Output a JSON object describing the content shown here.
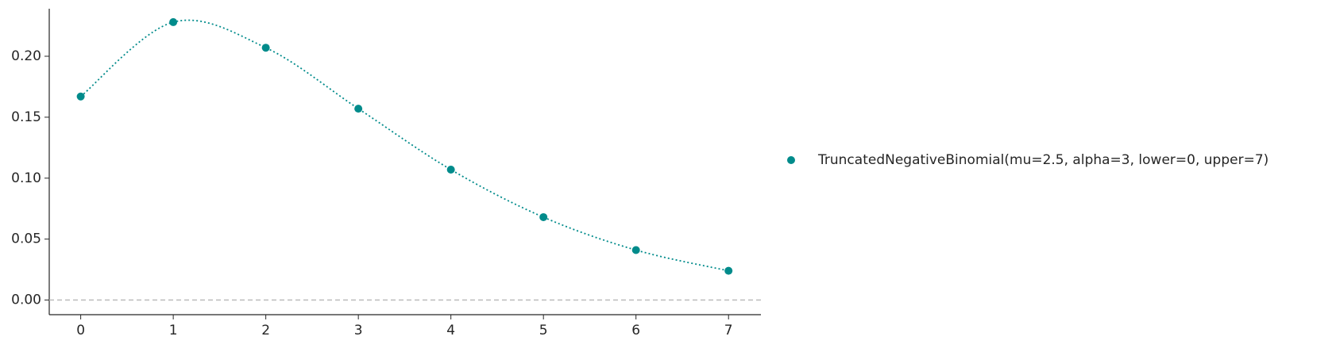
{
  "chart_data": {
    "type": "line",
    "x": [
      0,
      1,
      2,
      3,
      4,
      5,
      6,
      7
    ],
    "series": [
      {
        "name": "TruncatedNegativeBinomial(mu=2.5, alpha=3, lower=0, upper=7)",
        "color": "#008b8b",
        "values": [
          0.167,
          0.228,
          0.207,
          0.157,
          0.107,
          0.068,
          0.041,
          0.024
        ]
      }
    ],
    "xlim": [
      -0.34,
      7.35
    ],
    "xticks": [
      0,
      1,
      2,
      3,
      4,
      5,
      6,
      7
    ],
    "ylim": [
      -0.012,
      0.239
    ],
    "yticks": [
      {
        "value": 0,
        "label": "0.00"
      },
      {
        "value": 0.05,
        "label": "0.05"
      },
      {
        "value": 0.1,
        "label": "0.10"
      },
      {
        "value": 0.15,
        "label": "0.15"
      },
      {
        "value": 0.2,
        "label": "0.20"
      }
    ],
    "hline": 0,
    "legend": "right",
    "grid": false
  }
}
